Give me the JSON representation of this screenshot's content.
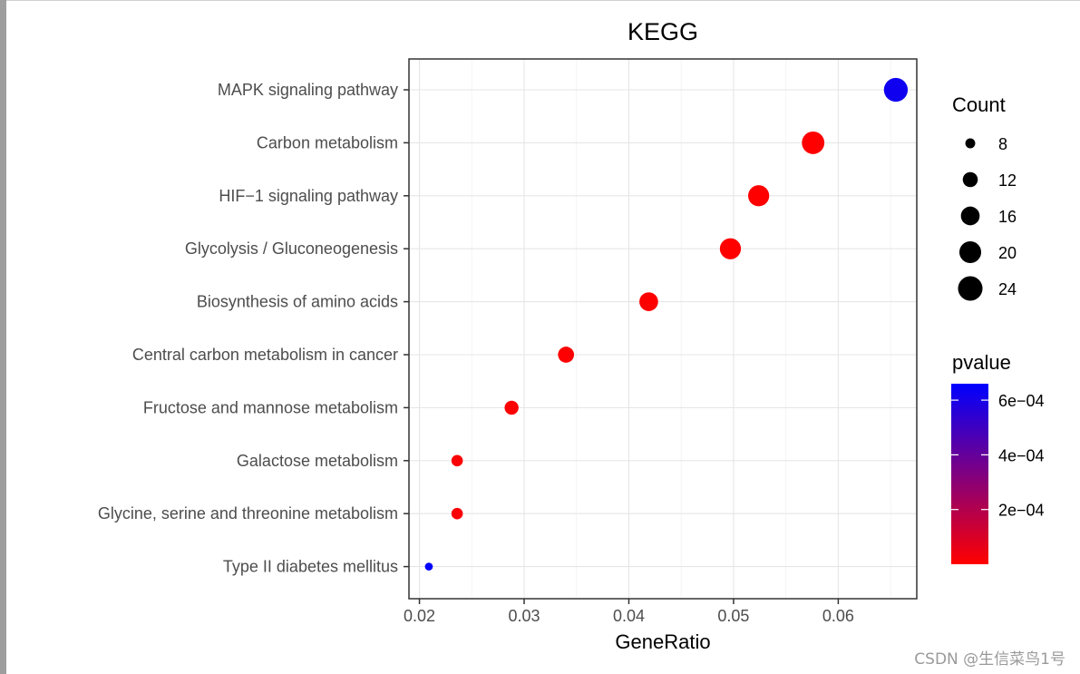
{
  "chart_data": {
    "type": "scatter",
    "title": "KEGG",
    "xlabel": "GeneRatio",
    "ylabel": "",
    "xlim": [
      0.019,
      0.0675
    ],
    "xticks": [
      0.02,
      0.03,
      0.04,
      0.05,
      0.06
    ],
    "xtick_labels": [
      "0.02",
      "0.03",
      "0.04",
      "0.05",
      "0.06"
    ],
    "grid": true,
    "points": [
      {
        "term": "MAPK signaling pathway",
        "gene_ratio": 0.0655,
        "count": 23,
        "pvalue": 0.00062
      },
      {
        "term": "Carbon metabolism",
        "gene_ratio": 0.0576,
        "count": 21,
        "pvalue": 1e-06
      },
      {
        "term": "HIF−1 signaling pathway",
        "gene_ratio": 0.0524,
        "count": 19,
        "pvalue": 1e-06
      },
      {
        "term": "Glycolysis / Gluconeogenesis",
        "gene_ratio": 0.0497,
        "count": 19,
        "pvalue": 1e-06
      },
      {
        "term": "Biosynthesis of amino acids",
        "gene_ratio": 0.0419,
        "count": 16,
        "pvalue": 1e-06
      },
      {
        "term": "Central carbon metabolism in cancer",
        "gene_ratio": 0.034,
        "count": 13,
        "pvalue": 5e-06
      },
      {
        "term": "Fructose and mannose metabolism",
        "gene_ratio": 0.0288,
        "count": 11,
        "pvalue": 5e-06
      },
      {
        "term": "Galactose metabolism",
        "gene_ratio": 0.0236,
        "count": 9,
        "pvalue": 1e-05
      },
      {
        "term": "Glycine, serine and threonine metabolism",
        "gene_ratio": 0.0236,
        "count": 9,
        "pvalue": 1e-05
      },
      {
        "term": "Type II diabetes mellitus",
        "gene_ratio": 0.0209,
        "count": 7,
        "pvalue": 0.00066
      }
    ],
    "size_legend": {
      "title": "Count",
      "values": [
        8,
        12,
        16,
        20,
        24
      ],
      "labels": [
        "8",
        "12",
        "16",
        "20",
        "24"
      ]
    },
    "color_legend": {
      "title": "pvalue",
      "low_color": "#ff0000",
      "high_color": "#0000ff",
      "range": [
        0,
        0.00066
      ],
      "ticks": [
        0.0002,
        0.0004,
        0.0006
      ],
      "tick_labels": [
        "2e−04",
        "4e−04",
        "6e−04"
      ]
    }
  },
  "watermark": "CSDN @生信菜鸟1号"
}
